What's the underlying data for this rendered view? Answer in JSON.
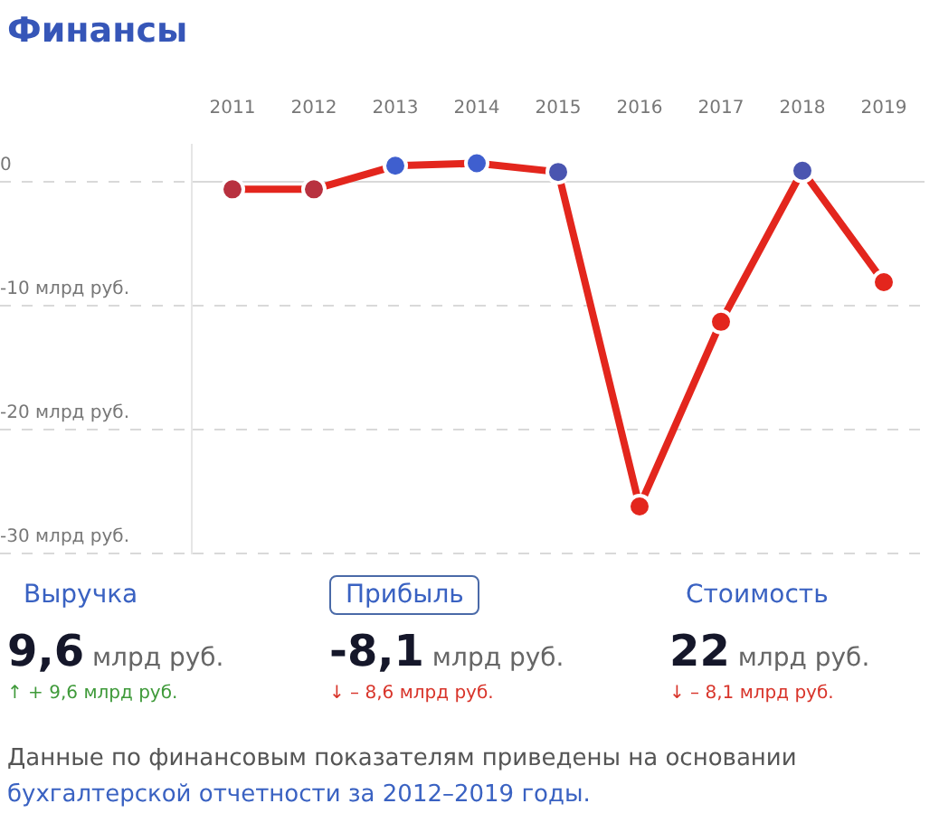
{
  "chart_data": {
    "type": "line",
    "title": "Финансы",
    "categories": [
      "2011",
      "2012",
      "2013",
      "2014",
      "2015",
      "2016",
      "2017",
      "2018",
      "2019"
    ],
    "series": [
      {
        "color": "#e3261d",
        "colors": [
          "#b8313f",
          "#b8313f",
          "#3f5fcf",
          "#3f5fcf",
          "#4a55b0",
          "#e3261d",
          "#e3261d",
          "#4a55b0",
          "#e3261d"
        ],
        "values": [
          -0.6,
          -0.6,
          1.3,
          1.5,
          0.8,
          -26.2,
          -11.3,
          0.9,
          -8.1
        ]
      }
    ],
    "ylim": [
      -30,
      3
    ],
    "yticks": [
      {
        "value": 0,
        "label": "0"
      },
      {
        "value": -10,
        "label": "-10 млрд руб."
      },
      {
        "value": -20,
        "label": "-20 млрд руб."
      },
      {
        "value": -30,
        "label": "-30 млрд руб."
      }
    ],
    "grid": "y",
    "legend": false,
    "marker": "circle",
    "line_style": "solid",
    "annotations": [
      "Выручка",
      "Прибыль",
      "Стоимость",
      "9,6 млрд руб.",
      "-8,1 млрд руб.",
      "22 млрд руб.",
      "↑ + 9,6 млрд руб.",
      "↓ – 8,6 млрд руб.",
      "↓ – 8,1 млрд руб.",
      "Данные по финансовым показателям приведены на основании",
      "бухгалтерской отчетности за 2012–2019 годы."
    ]
  }
}
